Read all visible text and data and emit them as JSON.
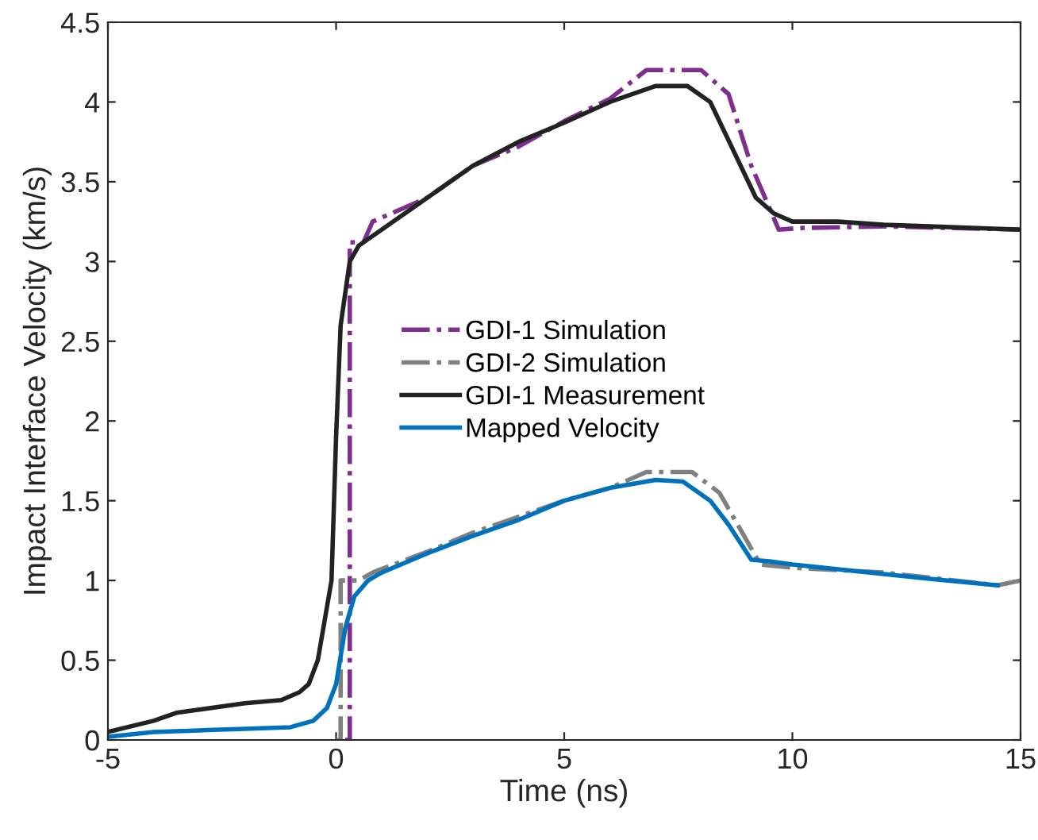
{
  "chart_data": {
    "type": "line",
    "xlabel": "Time (ns)",
    "ylabel": "Impact Interface Velocity (km/s)",
    "xlim": [
      -5,
      15
    ],
    "xticks": [
      -5,
      0,
      5,
      10,
      15
    ],
    "ylim": [
      0,
      4.5
    ],
    "yticks": [
      0,
      0.5,
      1,
      1.5,
      2,
      2.5,
      3,
      3.5,
      4,
      4.5
    ],
    "grid": false,
    "legend": "right",
    "marker": "none",
    "series": [
      {
        "name": "GDI-1 Simulation",
        "color": "#7e2f8e",
        "line_style": "dashdot",
        "x": [
          0.2,
          0.3,
          0.3,
          0.6,
          0.8,
          2,
          3,
          4,
          5,
          6,
          6.8,
          8,
          8.6,
          9.1,
          9.7,
          10.2,
          12,
          15
        ],
        "values": [
          0,
          0,
          3.12,
          3.12,
          3.25,
          3.4,
          3.6,
          3.72,
          3.88,
          4.02,
          4.2,
          4.2,
          4.05,
          3.6,
          3.2,
          3.21,
          3.22,
          3.2
        ]
      },
      {
        "name": "GDI-2 Simulation",
        "color": "#808080",
        "line_style": "dashdot",
        "x": [
          0,
          0.1,
          0.1,
          0.5,
          0.8,
          2,
          3,
          4,
          5,
          6,
          6.8,
          7.8,
          8.4,
          9.0,
          9.3,
          10,
          12,
          14.5,
          15
        ],
        "values": [
          0,
          0,
          1.0,
          1.0,
          1.05,
          1.18,
          1.3,
          1.4,
          1.5,
          1.58,
          1.68,
          1.68,
          1.55,
          1.25,
          1.1,
          1.08,
          1.05,
          0.97,
          1.0
        ]
      },
      {
        "name": "GDI-1 Measurement",
        "color": "#222222",
        "line_style": "solid",
        "x": [
          -5,
          -4,
          -3.5,
          -3,
          -2,
          -1.2,
          -0.8,
          -0.6,
          -0.4,
          -0.1,
          0,
          0.1,
          0.2,
          0.3,
          0.5,
          1,
          2,
          3,
          4,
          5,
          6,
          7,
          7.7,
          8.2,
          8.7,
          9.2,
          9.6,
          10,
          11,
          12,
          13,
          15
        ],
        "values": [
          0.05,
          0.12,
          0.17,
          0.19,
          0.23,
          0.25,
          0.3,
          0.35,
          0.5,
          1.0,
          1.9,
          2.6,
          2.8,
          3.0,
          3.1,
          3.2,
          3.4,
          3.6,
          3.75,
          3.87,
          4.0,
          4.1,
          4.1,
          4.0,
          3.7,
          3.4,
          3.3,
          3.25,
          3.25,
          3.23,
          3.22,
          3.2
        ]
      },
      {
        "name": "Mapped Velocity",
        "color": "#0072bd",
        "line_style": "solid",
        "x": [
          -5,
          -4,
          -3,
          -2,
          -1,
          -0.5,
          -0.2,
          0,
          0.2,
          0.4,
          0.7,
          1,
          2,
          3,
          4,
          5,
          6,
          7,
          7.6,
          8.2,
          8.6,
          9.1,
          9.5,
          10,
          11,
          12,
          13,
          14.5
        ],
        "values": [
          0.02,
          0.05,
          0.06,
          0.07,
          0.08,
          0.12,
          0.2,
          0.35,
          0.7,
          0.9,
          1.0,
          1.05,
          1.17,
          1.28,
          1.38,
          1.5,
          1.58,
          1.63,
          1.62,
          1.5,
          1.35,
          1.13,
          1.12,
          1.1,
          1.07,
          1.04,
          1.01,
          0.97
        ]
      }
    ]
  }
}
